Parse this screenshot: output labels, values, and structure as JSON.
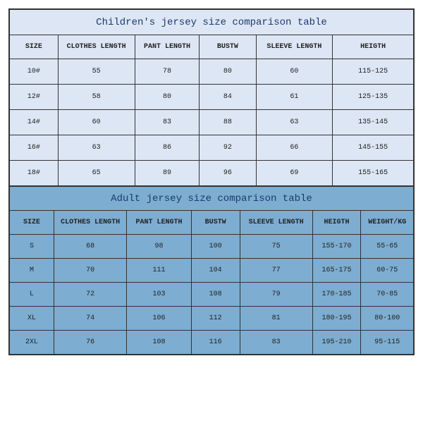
{
  "children_table": {
    "type": "table",
    "title": "Children's jersey size comparison table",
    "title_color": "#1a3a6e",
    "title_fontsize": 14,
    "background_color": "#dde6f4",
    "border_color": "#333333",
    "header_fontsize": 10,
    "cell_fontsize": 10,
    "columns": [
      "SIZE",
      "CLOTHES LENGTH",
      "PANT LENGTH",
      "BUSTW",
      "SLEEVE LENGTH",
      "HEIGTH"
    ],
    "column_widths_pct": [
      12,
      19,
      16,
      14,
      19,
      20
    ],
    "rows": [
      [
        "10#",
        "55",
        "78",
        "80",
        "60",
        "115-125"
      ],
      [
        "12#",
        "58",
        "80",
        "84",
        "61",
        "125-135"
      ],
      [
        "14#",
        "60",
        "83",
        "88",
        "63",
        "135-145"
      ],
      [
        "16#",
        "63",
        "86",
        "92",
        "66",
        "145-155"
      ],
      [
        "18#",
        "65",
        "89",
        "96",
        "69",
        "155-165"
      ]
    ]
  },
  "adult_table": {
    "type": "table",
    "title": "Adult jersey size comparison table",
    "title_color": "#1a3a6e",
    "title_fontsize": 14,
    "background_color": "#7dadd1",
    "border_color": "#333333",
    "header_fontsize": 10,
    "cell_fontsize": 10,
    "columns": [
      "SIZE",
      "CLOTHES LENGTH",
      "PANT LENGTH",
      "BUSTW",
      "SLEEVE LENGTH",
      "HEIGTH",
      "WEIGHT/KG"
    ],
    "column_widths_pct": [
      11,
      18,
      16,
      12,
      18,
      12,
      13
    ],
    "rows": [
      [
        "S",
        "68",
        "98",
        "100",
        "75",
        "155-170",
        "55-65"
      ],
      [
        "M",
        "70",
        "111",
        "104",
        "77",
        "165-175",
        "60-75"
      ],
      [
        "L",
        "72",
        "103",
        "108",
        "79",
        "170-185",
        "70-85"
      ],
      [
        "XL",
        "74",
        "106",
        "112",
        "81",
        "180-195",
        "80-100"
      ],
      [
        "2XL",
        "76",
        "108",
        "116",
        "83",
        "195-210",
        "95-115"
      ]
    ]
  }
}
